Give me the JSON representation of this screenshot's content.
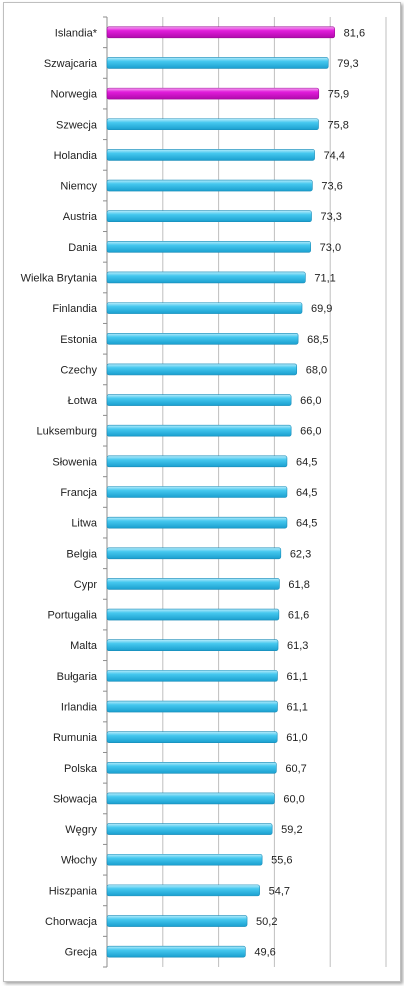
{
  "chart_data": {
    "type": "bar",
    "orientation": "horizontal",
    "title": "",
    "xlabel": "",
    "ylabel": "",
    "xlim": [
      0,
      100
    ],
    "grid": true,
    "colors": {
      "default": "#33bde8",
      "highlight": "#e010d8"
    },
    "categories": [
      "Islandia*",
      "Szwajcaria",
      "Norwegia",
      "Szwecja",
      "Holandia",
      "Niemcy",
      "Austria",
      "Dania",
      "Wielka Brytania",
      "Finlandia",
      "Estonia",
      "Czechy",
      "Łotwa",
      "Luksemburg",
      "Słowenia",
      "Francja",
      "Litwa",
      "Belgia",
      "Cypr",
      "Portugalia",
      "Malta",
      "Bułgaria",
      "Irlandia",
      "Rumunia",
      "Polska",
      "Słowacja",
      "Węgry",
      "Włochy",
      "Hiszpania",
      "Chorwacja",
      "Grecja"
    ],
    "values": [
      81.6,
      79.3,
      75.9,
      75.8,
      74.4,
      73.6,
      73.3,
      73.0,
      71.1,
      69.9,
      68.5,
      68.0,
      66.0,
      66.0,
      64.5,
      64.5,
      64.5,
      62.3,
      61.8,
      61.6,
      61.3,
      61.1,
      61.1,
      61.0,
      60.7,
      60.0,
      59.2,
      55.6,
      54.7,
      50.2,
      49.6
    ],
    "value_labels": [
      "81,6",
      "79,3",
      "75,9",
      "75,8",
      "74,4",
      "73,6",
      "73,3",
      "73,0",
      "71,1",
      "69,9",
      "68,5",
      "68,0",
      "66,0",
      "66,0",
      "64,5",
      "64,5",
      "64,5",
      "62,3",
      "61,8",
      "61,6",
      "61,3",
      "61,1",
      "61,1",
      "61,0",
      "60,7",
      "60,0",
      "59,2",
      "55,6",
      "54,7",
      "50,2",
      "49,6"
    ],
    "highlighted": [
      "Islandia*",
      "Norwegia"
    ]
  }
}
